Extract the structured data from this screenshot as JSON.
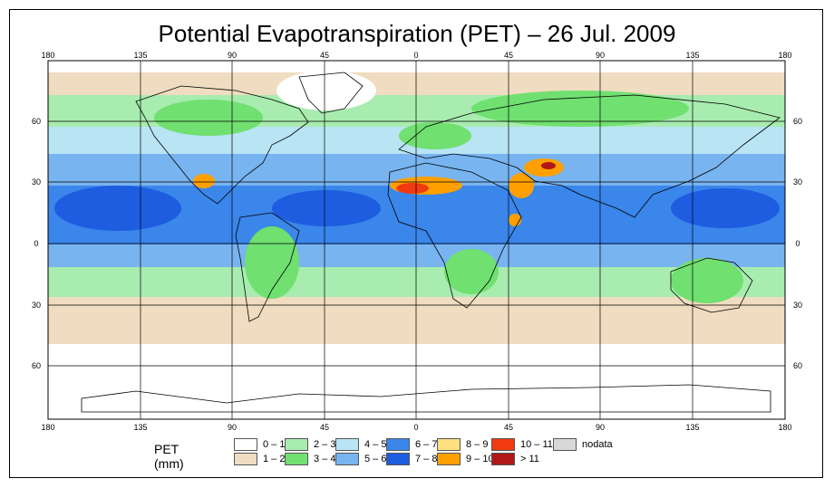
{
  "title": "Potential Evapotranspiration (PET) – 26 Jul. 2009",
  "lon_labels": [
    "180",
    "135",
    "90",
    "45",
    "0",
    "45",
    "90",
    "135",
    "180"
  ],
  "lat_labels": [
    "60",
    "30",
    "0",
    "30",
    "60"
  ],
  "legend": {
    "title": "PET (mm)",
    "items": [
      {
        "label": "0 – 1",
        "color": "#ffffff"
      },
      {
        "label": "1 – 2",
        "color": "#f0dcc0"
      },
      {
        "label": "2 – 3",
        "color": "#a8ecb0"
      },
      {
        "label": "3 – 4",
        "color": "#70e070"
      },
      {
        "label": "4 – 5",
        "color": "#b8e4f4"
      },
      {
        "label": "5 – 6",
        "color": "#78b4f0"
      },
      {
        "label": "6 – 7",
        "color": "#3a86ea"
      },
      {
        "label": "7 – 8",
        "color": "#1e5ce0"
      },
      {
        "label": "8 – 9",
        "color": "#ffe080"
      },
      {
        "label": "9 – 10",
        "color": "#ffa000"
      },
      {
        "label": "10 – 11",
        "color": "#f03a10"
      },
      {
        "label": "> 11",
        "color": "#b01818"
      },
      {
        "label": "nodata",
        "color": "#d8d8d8"
      }
    ]
  }
}
